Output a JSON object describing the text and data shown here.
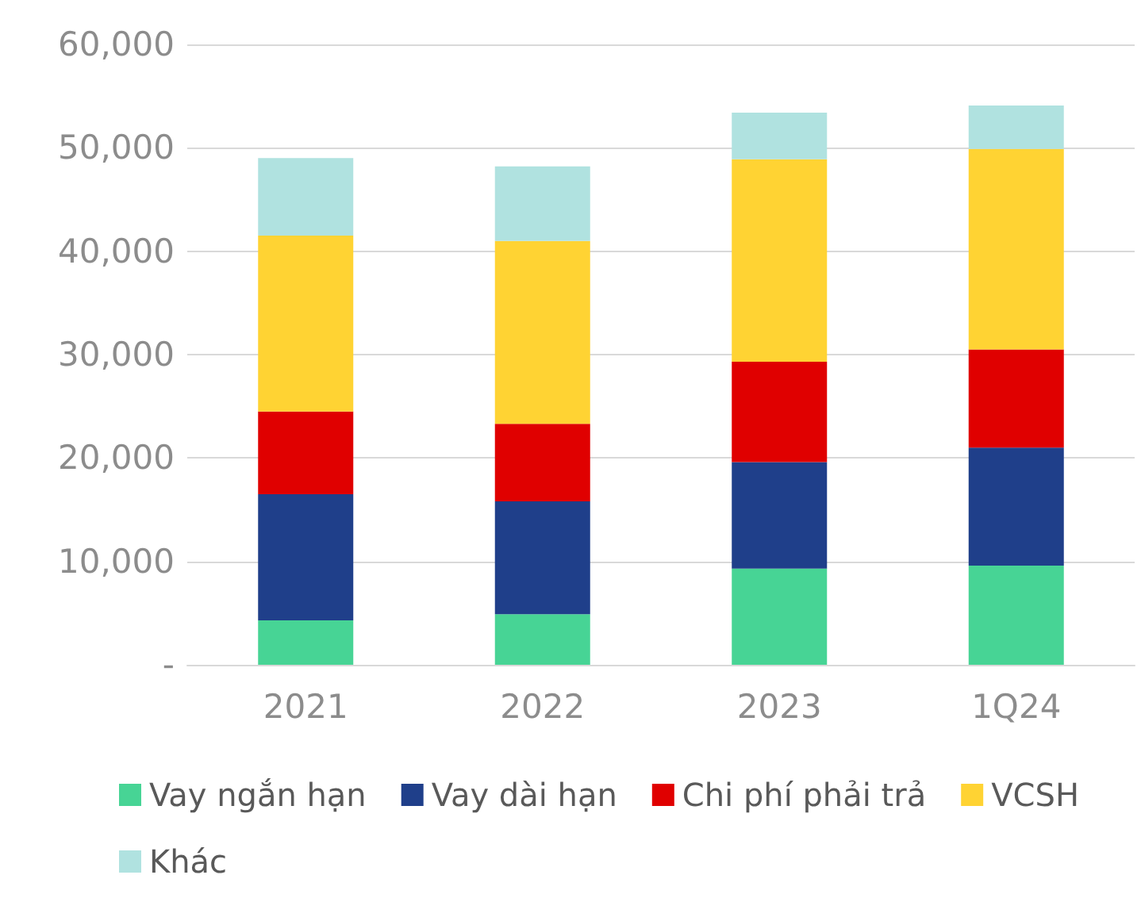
{
  "chart_data": {
    "type": "bar",
    "stacked": true,
    "categories": [
      "2021",
      "2022",
      "2023",
      "1Q24"
    ],
    "series": [
      {
        "name": "Vay ngắn hạn",
        "color": "#47d495",
        "values": [
          4300,
          4900,
          9300,
          9600
        ]
      },
      {
        "name": "Vay dài hạn",
        "color": "#1f3f8a",
        "values": [
          12200,
          10900,
          10300,
          11400
        ]
      },
      {
        "name": "Chi phí phải trả",
        "color": "#e00000",
        "values": [
          8000,
          7500,
          9700,
          9500
        ]
      },
      {
        "name": "VCSH",
        "color": "#ffd333",
        "values": [
          17000,
          17700,
          19600,
          19400
        ]
      },
      {
        "name": "Khác",
        "color": "#b0e2e0",
        "values": [
          7500,
          7200,
          4500,
          4200
        ]
      }
    ],
    "ylim": [
      0,
      60000
    ],
    "yticks": [
      {
        "value": 0,
        "label": "-"
      },
      {
        "value": 10000,
        "label": "10,000"
      },
      {
        "value": 20000,
        "label": "20,000"
      },
      {
        "value": 30000,
        "label": "30,000"
      },
      {
        "value": 40000,
        "label": "40,000"
      },
      {
        "value": 50000,
        "label": "50,000"
      },
      {
        "value": 60000,
        "label": "60,000"
      }
    ],
    "grid": "y",
    "legend": "bottom"
  }
}
